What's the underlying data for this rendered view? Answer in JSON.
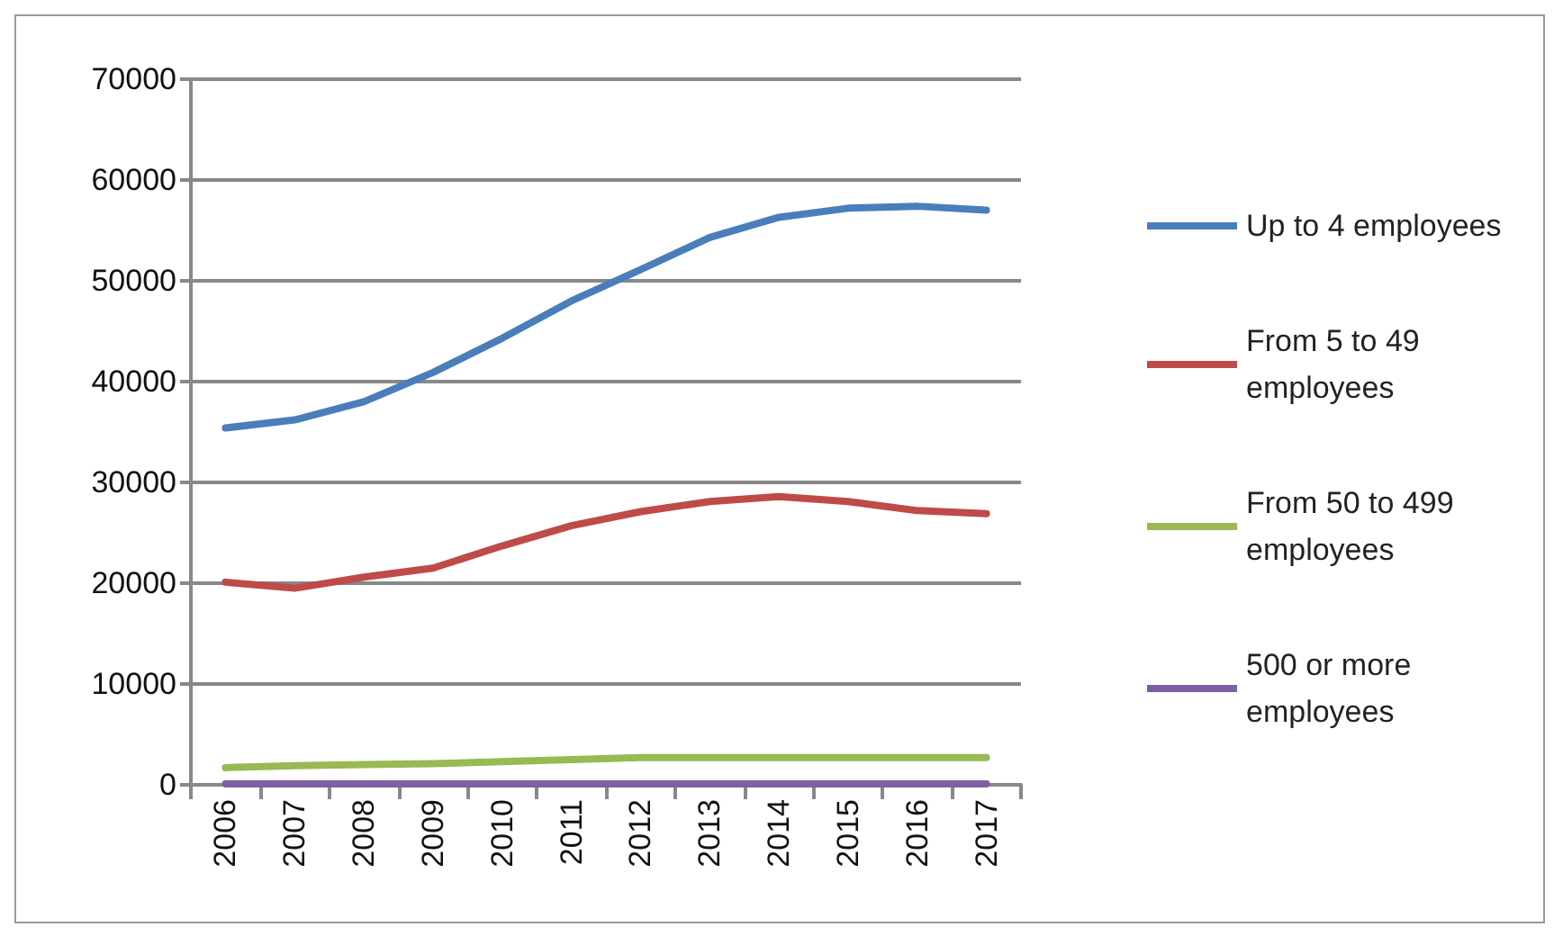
{
  "chart_data": {
    "type": "line",
    "categories": [
      "2006",
      "2007",
      "2008",
      "2009",
      "2010",
      "2011",
      "2012",
      "2013",
      "2014",
      "2015",
      "2016",
      "2017"
    ],
    "series": [
      {
        "name": "Up to 4 employees",
        "color": "#4a7ebb",
        "values": [
          35400,
          36200,
          38000,
          40900,
          44300,
          48000,
          51100,
          54300,
          56300,
          57200,
          57400,
          57000
        ]
      },
      {
        "name": "From 5 to 49 employees",
        "color": "#be4b48",
        "values": [
          20100,
          19500,
          20600,
          21500,
          23700,
          25700,
          27100,
          28100,
          28600,
          28100,
          27200,
          26900
        ]
      },
      {
        "name": "From 50 to 499 employees",
        "color": "#98b954",
        "values": [
          1700,
          1900,
          2000,
          2100,
          2300,
          2500,
          2700,
          2700,
          2700,
          2700,
          2700,
          2700
        ]
      },
      {
        "name": "500 or more employees",
        "color": "#7d60a0",
        "values": [
          100,
          100,
          100,
          100,
          100,
          100,
          100,
          100,
          100,
          100,
          100,
          100
        ]
      }
    ],
    "ylim": [
      0,
      70000
    ],
    "yticks": [
      0,
      10000,
      20000,
      30000,
      40000,
      50000,
      60000,
      70000
    ],
    "grid": "y",
    "legend": "right",
    "marker": "none",
    "line_style": "solid"
  }
}
